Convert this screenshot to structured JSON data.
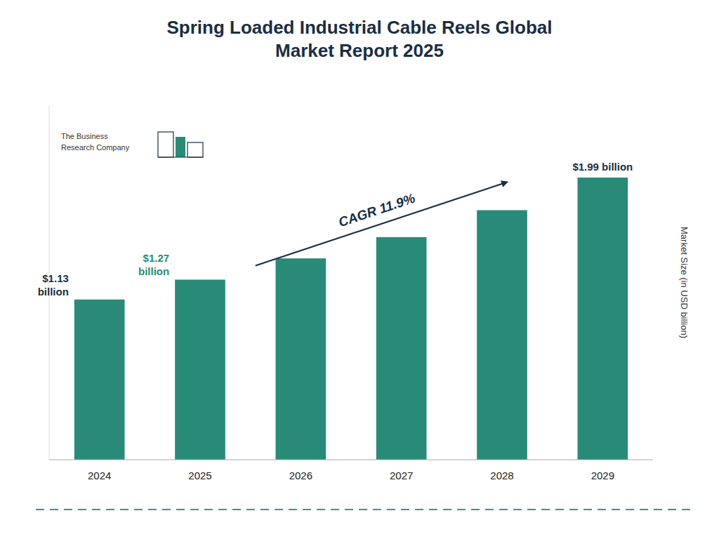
{
  "chart_data": {
    "type": "bar",
    "title": "Spring Loaded Industrial Cable Reels Global\nMarket Report 2025",
    "categories": [
      "2024",
      "2025",
      "2026",
      "2027",
      "2028",
      "2029"
    ],
    "values": [
      1.13,
      1.27,
      1.42,
      1.57,
      1.76,
      1.99
    ],
    "value_labels": [
      "$1.13\nbillion",
      "$1.27\nbillion",
      null,
      null,
      null,
      "$1.99 billion"
    ],
    "data_labels": true,
    "color": "#2a8a78",
    "y_label": "Market Size (in USD billion)",
    "ylim": [
      0,
      2.5
    ],
    "tick_labels": "x",
    "grid": false,
    "annotations": [
      "CAGR 11.9%",
      "The Business\nResearch Company"
    ]
  }
}
